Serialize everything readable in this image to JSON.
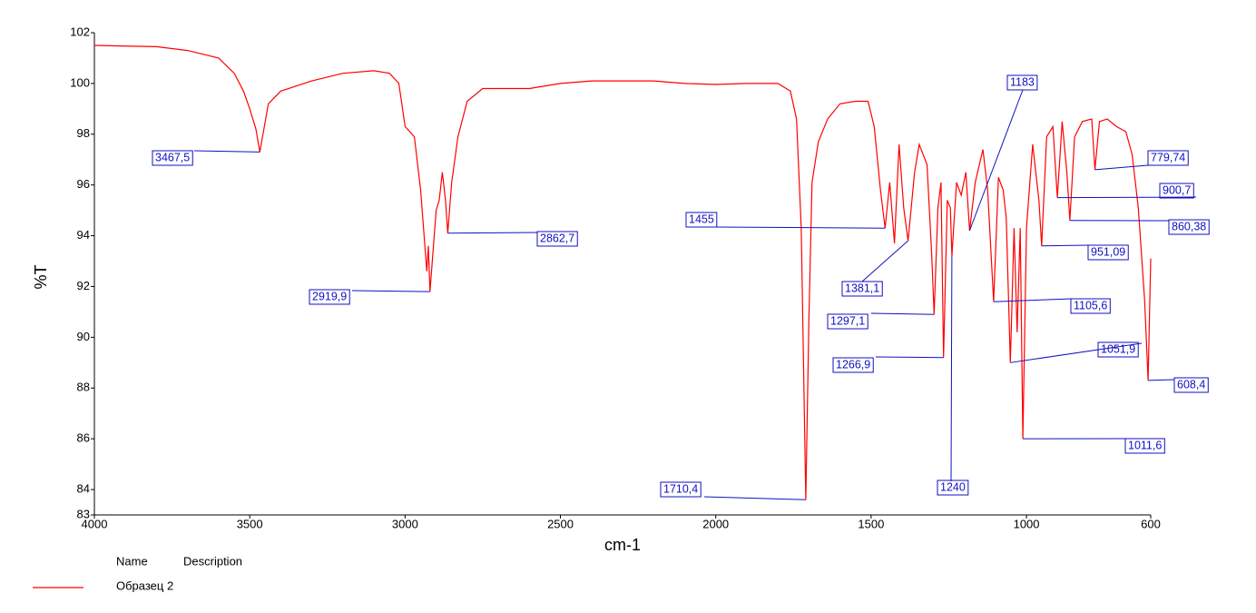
{
  "chart_data": {
    "type": "line",
    "xlabel": "cm-1",
    "ylabel": "%T",
    "xlim": [
      4000,
      600
    ],
    "ylim": [
      83,
      102
    ],
    "xticks": [
      4000,
      3500,
      3000,
      2500,
      2000,
      1500,
      1000,
      600
    ],
    "yticks": [
      83,
      84,
      86,
      88,
      90,
      92,
      94,
      96,
      98,
      100,
      102
    ],
    "legend_headers": [
      "Name",
      "Description"
    ],
    "x": [
      4000,
      3800,
      3700,
      3600,
      3550,
      3520,
      3500,
      3480,
      3467.5,
      3440,
      3400,
      3300,
      3200,
      3100,
      3050,
      3020,
      3000,
      2970,
      2950,
      2930,
      2925,
      2919.9,
      2900,
      2890,
      2880,
      2870,
      2862.7,
      2850,
      2830,
      2800,
      2750,
      2600,
      2500,
      2400,
      2300,
      2200,
      2100,
      2000,
      1900,
      1800,
      1760,
      1740,
      1725,
      1710.4,
      1700,
      1690,
      1670,
      1640,
      1600,
      1550,
      1510,
      1490,
      1470,
      1455,
      1440,
      1425,
      1410,
      1395,
      1381.1,
      1360,
      1345,
      1320,
      1305,
      1297.1,
      1285,
      1275,
      1266.9,
      1255,
      1245,
      1240,
      1225,
      1210,
      1195,
      1183,
      1165,
      1140,
      1125,
      1105.6,
      1090,
      1075,
      1065,
      1051.9,
      1040,
      1030,
      1020,
      1011.6,
      1000,
      980,
      960,
      951.09,
      935,
      915,
      900.7,
      885,
      870,
      860.38,
      845,
      820,
      790,
      779.74,
      765,
      740,
      710,
      680,
      660,
      640,
      620,
      608.4,
      600
    ],
    "series": [
      {
        "name": "Образец 2",
        "color": "#ff0000",
        "values": [
          101.5,
          101.45,
          101.3,
          101.0,
          100.4,
          99.7,
          99.0,
          98.2,
          97.3,
          99.2,
          99.7,
          100.1,
          100.4,
          100.5,
          100.4,
          100.0,
          98.3,
          97.9,
          95.8,
          92.6,
          93.6,
          91.8,
          95.0,
          95.4,
          96.5,
          95.4,
          94.1,
          96.1,
          97.9,
          99.3,
          99.8,
          99.8,
          100.0,
          100.1,
          100.1,
          100.1,
          100.0,
          99.96,
          100.0,
          100.0,
          99.7,
          98.6,
          94.3,
          83.6,
          90.8,
          96.1,
          97.7,
          98.6,
          99.2,
          99.3,
          99.3,
          98.3,
          95.8,
          94.3,
          96.1,
          93.7,
          97.6,
          95.1,
          93.8,
          96.5,
          97.6,
          96.8,
          93.3,
          90.9,
          95.1,
          96.1,
          89.2,
          95.4,
          95.1,
          93.2,
          96.1,
          95.6,
          96.5,
          94.2,
          96.1,
          97.4,
          95.8,
          91.4,
          96.3,
          95.8,
          94.7,
          89.0,
          94.3,
          90.2,
          94.3,
          86.0,
          94.3,
          97.6,
          95.4,
          93.6,
          97.9,
          98.3,
          95.5,
          98.5,
          96.5,
          94.6,
          97.9,
          98.5,
          98.6,
          96.6,
          98.5,
          98.6,
          98.3,
          98.1,
          97.2,
          95.1,
          91.5,
          88.3,
          93.1
        ]
      }
    ],
    "annotations": [
      {
        "label": "3467,5",
        "x": 3467.5,
        "y": 97.3
      },
      {
        "label": "2919,9",
        "x": 2919.9,
        "y": 91.8
      },
      {
        "label": "2862,7",
        "x": 2862.7,
        "y": 94.1
      },
      {
        "label": "1710,4",
        "x": 1710.4,
        "y": 83.6
      },
      {
        "label": "1455",
        "x": 1455,
        "y": 94.3
      },
      {
        "label": "1381,1",
        "x": 1381.1,
        "y": 93.8
      },
      {
        "label": "1297,1",
        "x": 1297.1,
        "y": 90.9
      },
      {
        "label": "1266,9",
        "x": 1266.9,
        "y": 89.2
      },
      {
        "label": "1240",
        "x": 1240,
        "y": 93.2
      },
      {
        "label": "1183",
        "x": 1183,
        "y": 94.2
      },
      {
        "label": "1105,6",
        "x": 1105.6,
        "y": 91.4
      },
      {
        "label": "1051,9",
        "x": 1051.9,
        "y": 89.0
      },
      {
        "label": "1011,6",
        "x": 1011.6,
        "y": 86.0
      },
      {
        "label": "951,09",
        "x": 951.09,
        "y": 93.6
      },
      {
        "label": "900,7",
        "x": 900.7,
        "y": 95.5
      },
      {
        "label": "860,38",
        "x": 860.38,
        "y": 94.6
      },
      {
        "label": "779,74",
        "x": 779.74,
        "y": 96.6
      },
      {
        "label": "608,4",
        "x": 608.4,
        "y": 88.3
      }
    ]
  }
}
